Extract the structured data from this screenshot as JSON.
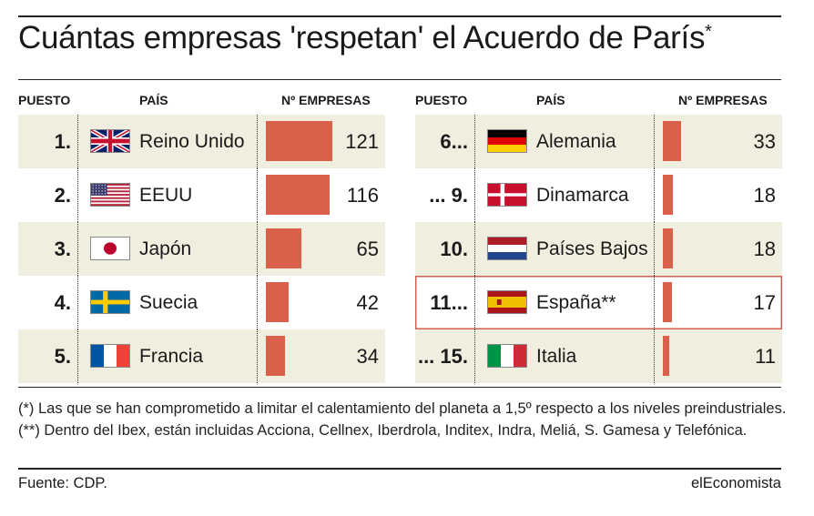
{
  "title": "Cuántas empresas 'respetan' el Acuerdo de París",
  "title_mark": "*",
  "headers": {
    "rank": "PUESTO",
    "country": "PAÍS",
    "count": "Nº EMPRESAS"
  },
  "chart_data": {
    "type": "bar",
    "title": "Cuántas empresas 'respetan' el Acuerdo de París*",
    "categories": [
      "Reino Unido",
      "EEUU",
      "Japón",
      "Suecia",
      "Francia",
      "Alemania",
      "Dinamarca",
      "Países Bajos",
      "España**",
      "Italia"
    ],
    "values": [
      121,
      116,
      65,
      42,
      34,
      33,
      18,
      18,
      17,
      11
    ],
    "xlabel": "",
    "ylabel": "Nº EMPRESAS",
    "ylim": [
      0,
      121
    ]
  },
  "rows": [
    {
      "rank": "1.",
      "country": "Reino Unido",
      "value": "121",
      "flag": "uk-flag-icon"
    },
    {
      "rank": "2.",
      "country": "EEUU",
      "value": "116",
      "flag": "us-flag-icon"
    },
    {
      "rank": "3.",
      "country": "Japón",
      "value": "65",
      "flag": "japan-flag-icon"
    },
    {
      "rank": "4.",
      "country": "Suecia",
      "value": "42",
      "flag": "sweden-flag-icon"
    },
    {
      "rank": "5.",
      "country": "Francia",
      "value": "34",
      "flag": "france-flag-icon"
    },
    {
      "rank": "6...",
      "country": "Alemania",
      "value": "33",
      "flag": "germany-flag-icon"
    },
    {
      "rank": "... 9.",
      "country": "Dinamarca",
      "value": "18",
      "flag": "denmark-flag-icon"
    },
    {
      "rank": "10.",
      "country": "Países Bajos",
      "value": "18",
      "flag": "netherlands-flag-icon"
    },
    {
      "rank": "11...",
      "country": "España**",
      "value": "17",
      "flag": "spain-flag-icon",
      "highlight": true
    },
    {
      "rank": "... 15.",
      "country": "Italia",
      "value": "11",
      "flag": "italy-flag-icon"
    }
  ],
  "footnote": "(*) Las que se han comprometido a limitar el calentamiento del planeta a 1,5º respecto a los niveles preindustriales. (**) Dentro del Ibex, están incluidas Acciona, Cellnex, Iberdrola, Inditex, Indra, Meliá, S. Gamesa y Telefónica.",
  "source": "Fuente: CDP.",
  "brand": "elEconomista",
  "colors": {
    "bar": "#d9604a",
    "shade": "#f0eedf",
    "highlight_border": "#d06050"
  }
}
